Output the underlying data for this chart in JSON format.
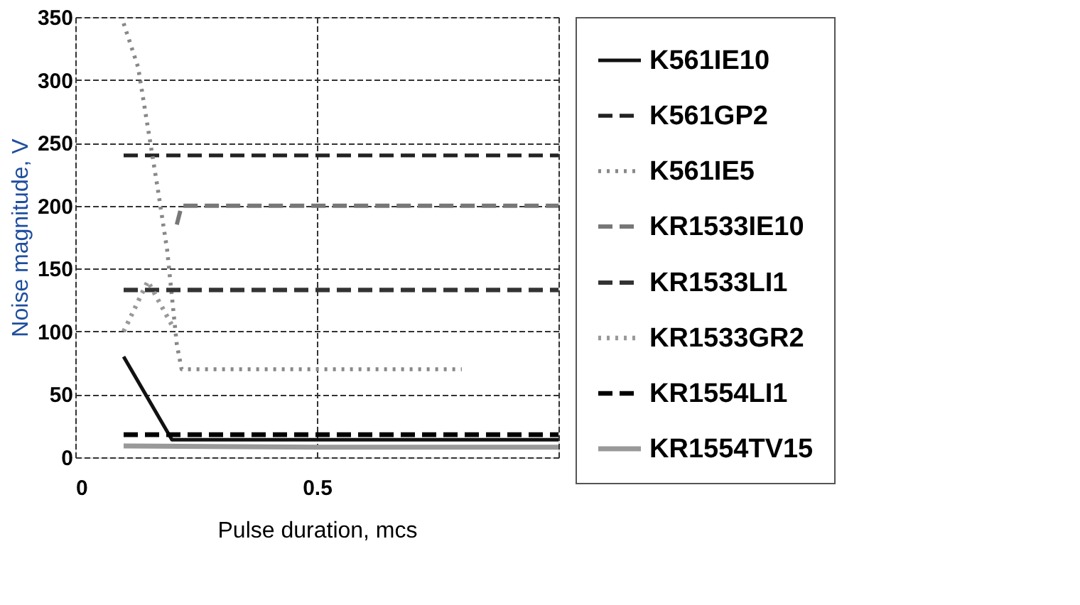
{
  "chart_data": {
    "type": "line",
    "xlabel": "Pulse duration, mcs",
    "ylabel": "Noise magnitude, V",
    "xlim": [
      0,
      1
    ],
    "xticks": [
      0,
      0.5,
      {
        "value": 1,
        "label": null
      }
    ],
    "ylim": [
      0,
      350
    ],
    "yticks": [
      0,
      50,
      100,
      150,
      200,
      250,
      300,
      350
    ],
    "grid": true,
    "legend": "right",
    "marker": "none",
    "series": [
      {
        "name": "K561IE10",
        "color": "#111111",
        "line_style": "solid",
        "x": [
          0.1,
          0.2,
          1.0
        ],
        "values": [
          80,
          14,
          14
        ]
      },
      {
        "name": "K561GP2",
        "color": "#222222",
        "line_style": "dashed",
        "x": [
          0.1,
          1.0
        ],
        "values": [
          240,
          240
        ]
      },
      {
        "name": "K561IE5",
        "color": "#888888",
        "line_style": "dotted",
        "x": [
          0.1,
          0.13,
          0.17,
          0.19,
          0.21,
          0.22,
          0.8
        ],
        "values": [
          345,
          310,
          215,
          165,
          90,
          70,
          70
        ]
      },
      {
        "name": "KR1533IE10",
        "color": "#777777",
        "line_style": "dashed",
        "x": [
          0.21,
          0.22,
          1.0
        ],
        "values": [
          185,
          200,
          200
        ]
      },
      {
        "name": "KR1533LI1",
        "color": "#333333",
        "line_style": "dashed",
        "x": [
          0.1,
          1.0
        ],
        "values": [
          133,
          133
        ]
      },
      {
        "name": "KR1533GR2",
        "color": "#999999",
        "line_style": "dotted",
        "x": [
          0.1,
          0.15,
          0.2
        ],
        "values": [
          100,
          140,
          105
        ]
      },
      {
        "name": "KR1554LI1",
        "color": "#000000",
        "line_style": "dashed",
        "x": [
          0.1,
          1.0
        ],
        "values": [
          18,
          18
        ]
      },
      {
        "name": "KR1554TV15",
        "color": "#999999",
        "line_style": "solid",
        "x": [
          0.1,
          0.5,
          1.0
        ],
        "values": [
          9,
          8,
          8
        ]
      }
    ]
  }
}
